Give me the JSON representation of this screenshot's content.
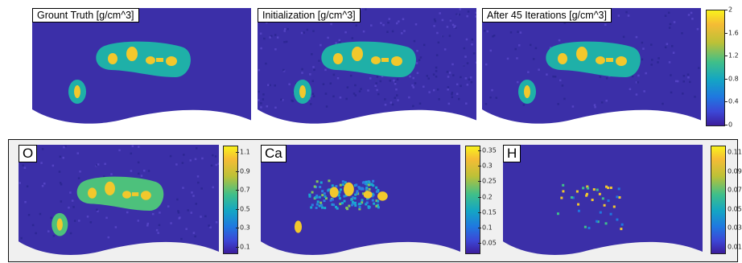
{
  "top_row": {
    "panels": [
      {
        "title": "Grount Truth [g/cm^3]"
      },
      {
        "title": "Initialization [g/cm^3]"
      },
      {
        "title": "After 45 Iterations [g/cm^3]"
      }
    ],
    "colorbar_ticks": [
      "2",
      "1.6",
      "1.2",
      "0.8",
      "0.4",
      "0"
    ]
  },
  "bottom_row": {
    "panels": [
      {
        "label": "O",
        "accent": "~",
        "colorbar_ticks": [
          "1.1",
          "0.9",
          "0.7",
          "0.5",
          "0.3",
          "0.1"
        ]
      },
      {
        "label": "Ca",
        "accent": "~",
        "colorbar_ticks": [
          "0.35",
          "0.3",
          "0.25",
          "0.2",
          "0.15",
          "0.1",
          "0.05"
        ]
      },
      {
        "label": "H",
        "accent": "",
        "colorbar_ticks": [
          "0.11",
          "0.09",
          "0.07",
          "0.05",
          "0.03",
          "0.01"
        ]
      }
    ]
  },
  "colors": {
    "background_field": "#3b2fa8",
    "body_tissue": "#1fb0a8",
    "bone": "#f2c82c",
    "frame": "#f0f0f0"
  }
}
